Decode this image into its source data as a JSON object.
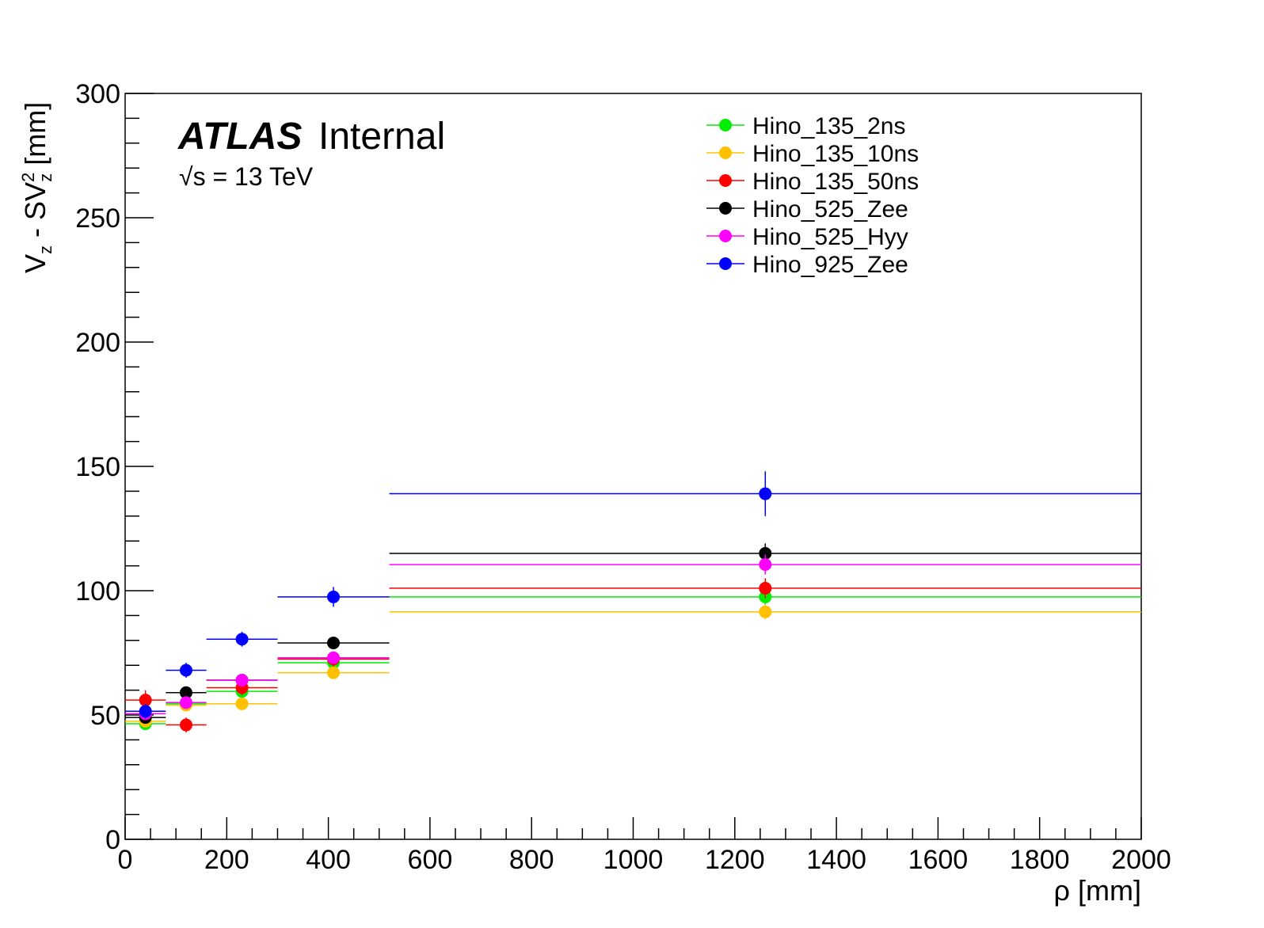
{
  "chart_data": {
    "type": "scatter",
    "xlabel": "ρ [mm]",
    "ylabel": "V_z - SV_z^2 [mm]",
    "xlim": [
      0,
      2000
    ],
    "ylim": [
      0,
      300
    ],
    "x_ticks": [
      0,
      200,
      400,
      600,
      800,
      1000,
      1200,
      1400,
      1600,
      1800,
      2000
    ],
    "y_ticks": [
      0,
      50,
      100,
      150,
      200,
      250,
      300
    ],
    "grid": false,
    "legend_position": "top-right",
    "annotations": {
      "experiment": "ATLAS",
      "status": "Internal",
      "energy": "√s = 13 TeV"
    },
    "bins": [
      [
        0,
        80
      ],
      [
        80,
        160
      ],
      [
        160,
        300
      ],
      [
        300,
        520
      ],
      [
        520,
        2000
      ]
    ],
    "series": [
      {
        "name": "Hino_135_2ns",
        "color": "#00ee00",
        "values": [
          46.5,
          54.5,
          59.5,
          71,
          97.5
        ],
        "errors": [
          2,
          2,
          2,
          3,
          4
        ]
      },
      {
        "name": "Hino_135_10ns",
        "color": "#ffc000",
        "values": [
          47.5,
          54,
          54.5,
          67,
          91.5
        ],
        "errors": [
          2,
          2,
          2,
          2,
          3
        ]
      },
      {
        "name": "Hino_135_50ns",
        "color": "#ff0000",
        "values": [
          56,
          46,
          61,
          72.5,
          101
        ],
        "errors": [
          4,
          3,
          3,
          3,
          4
        ]
      },
      {
        "name": "Hino_525_Zee",
        "color": "#000000",
        "values": [
          49,
          59,
          64,
          79,
          115
        ],
        "errors": [
          2,
          2,
          2,
          2,
          4
        ]
      },
      {
        "name": "Hino_525_Hyy",
        "color": "#ff00ff",
        "values": [
          50.5,
          55,
          64,
          73,
          110.5
        ],
        "errors": [
          2,
          2,
          2,
          2,
          4
        ]
      },
      {
        "name": "Hino_925_Zee",
        "color": "#0000ff",
        "values": [
          51.5,
          68,
          80.5,
          97.5,
          139
        ],
        "errors": [
          3,
          3,
          3,
          4,
          9
        ]
      }
    ]
  }
}
